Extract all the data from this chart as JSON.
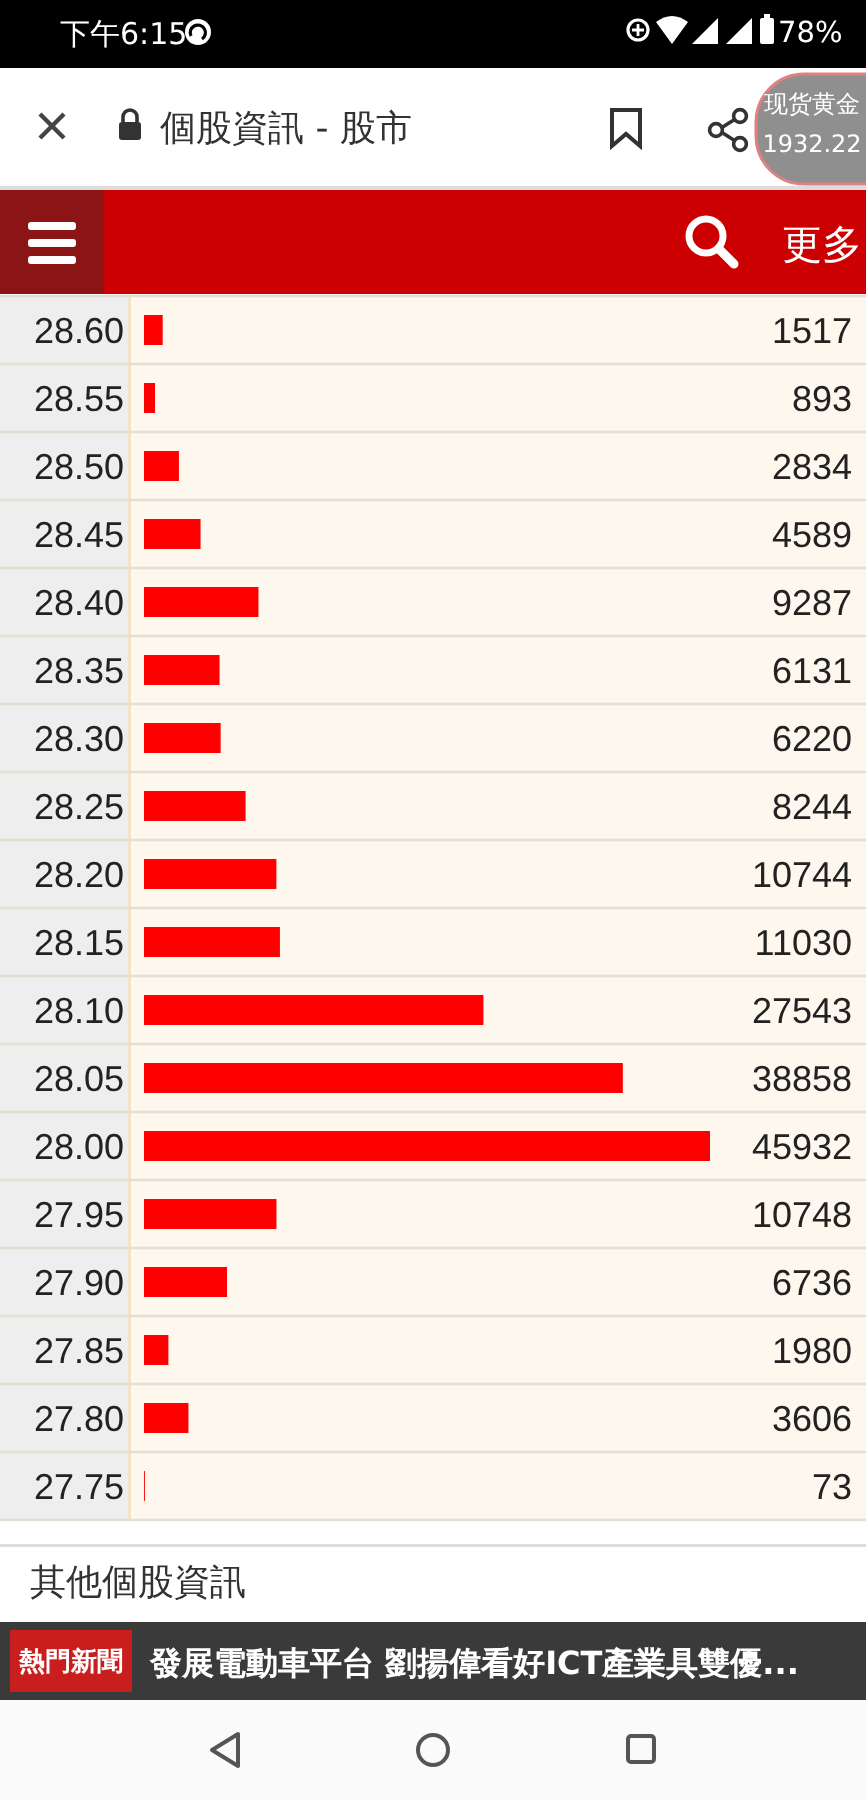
{
  "chart_data": {
    "type": "bar",
    "orientation": "horizontal",
    "categories": [
      "28.60",
      "28.55",
      "28.50",
      "28.45",
      "28.40",
      "28.35",
      "28.30",
      "28.25",
      "28.20",
      "28.15",
      "28.10",
      "28.05",
      "28.00",
      "27.95",
      "27.90",
      "27.85",
      "27.80",
      "27.75"
    ],
    "values": [
      1517,
      893,
      2834,
      4589,
      9287,
      6131,
      6220,
      8244,
      10744,
      11030,
      27543,
      38858,
      45932,
      10748,
      6736,
      1980,
      3606,
      73
    ],
    "color": "#ff0000",
    "data_labels": true,
    "tick_labels": "y",
    "grid": "y",
    "annotations": [
      "下午6:15",
      "78%",
      "個股資訊 - 股市",
      "现货黄金",
      "1932.22",
      "更多",
      "其他個股資訊",
      "熱門新聞",
      "發展電動車平台 劉揚偉看好ICT產業具雙優..."
    ]
  }
}
